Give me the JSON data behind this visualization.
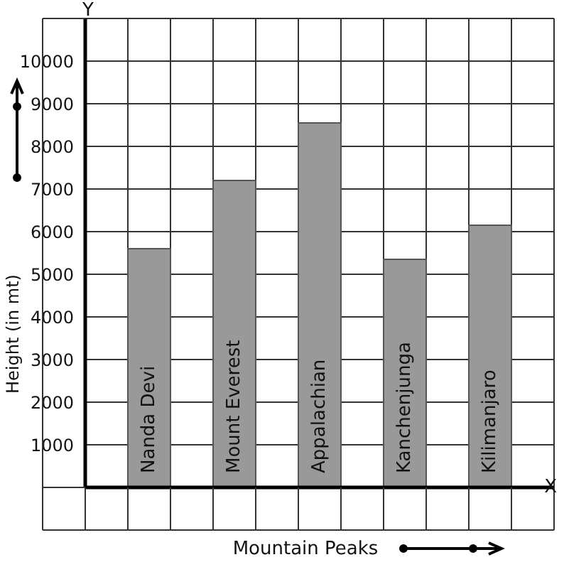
{
  "chart_data": {
    "type": "bar",
    "xlabel": "Mountain Peaks",
    "ylabel": "Height (in mt)",
    "categories": [
      "Nanda Devi",
      "Mount Everest",
      "Appalachian",
      "Kanchenjunga",
      "Kilimanjaro"
    ],
    "values": [
      5600,
      7200,
      8550,
      5350,
      6150
    ],
    "color": "#999999",
    "ylim": [
      0,
      11000
    ],
    "yticks": [
      1000,
      2000,
      3000,
      4000,
      5000,
      6000,
      7000,
      8000,
      9000,
      10000
    ],
    "grid": true,
    "annotations": [
      "Y",
      "X"
    ]
  }
}
